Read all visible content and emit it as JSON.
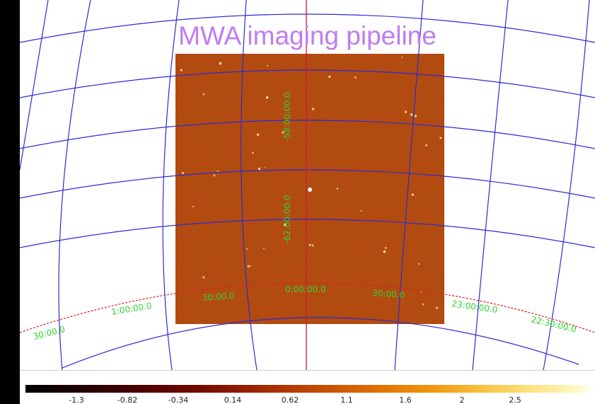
{
  "title": "MWA imaging pipeline",
  "colors": {
    "background": "#000000",
    "title": "#c07cf0",
    "grid_lines": "#2b2bd8",
    "horizon_line": "#e02020",
    "coord_labels": "#2fd42f",
    "image_base": "#b8480f"
  },
  "dec_labels": [
    "-58:00:00.0",
    "-62:00:00.0"
  ],
  "ra_labels": [
    "30:00.0",
    "1:00:00.0",
    "30:00.0",
    "0:00:00.0",
    "30:00.0",
    "23:00:00.0",
    "22:30:00.0"
  ],
  "colorbar": {
    "ticks": [
      "-1.3",
      "-0.82",
      "-0.34",
      "0.14",
      "0.62",
      "1.1",
      "1.6",
      "2",
      "2.5"
    ]
  }
}
